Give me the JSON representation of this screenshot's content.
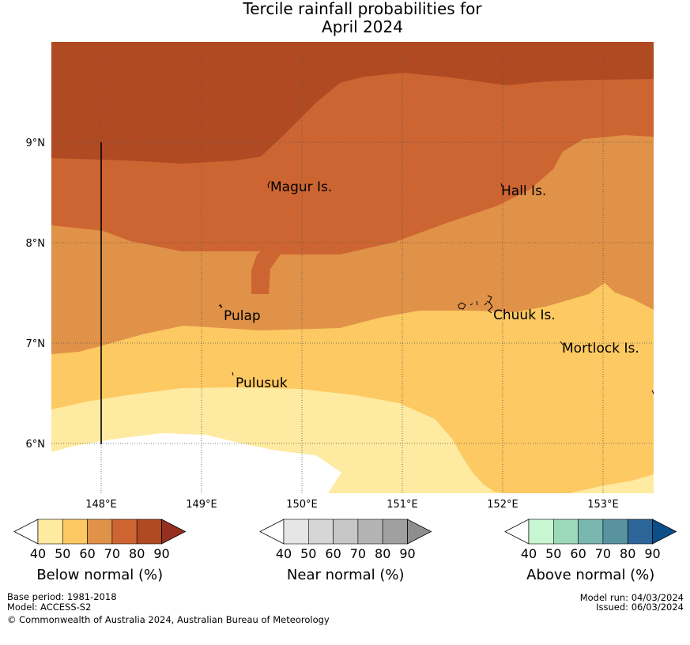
{
  "title": {
    "line1": "Tercile rainfall probabilities for",
    "line2": "April 2024"
  },
  "map": {
    "lat_labels": [
      "9°N",
      "8°N",
      "7°N",
      "6°N"
    ],
    "lon_labels": [
      "148°E",
      "149°E",
      "150°E",
      "151°E",
      "152°E",
      "153°E"
    ],
    "places": [
      "Magur Is.",
      "Hall Is.",
      "Pulap",
      "Chuuk Is.",
      "Mortlock Is.",
      "Pulusuk"
    ],
    "zone_colors": {
      "below_80": "#b04a22",
      "below_70": "#cd6532",
      "below_60": "#e09248",
      "below_50": "#fdc962",
      "below_40": "#feeaa0",
      "neutral": "#ffffff"
    }
  },
  "legends": [
    {
      "label": "Below normal (%)",
      "ticks": [
        "40",
        "50",
        "60",
        "70",
        "80",
        "90"
      ],
      "colors": [
        "#feeaa0",
        "#fdc962",
        "#e09248",
        "#cd6532",
        "#b04a22",
        "#953020"
      ]
    },
    {
      "label": "Near normal (%)",
      "ticks": [
        "40",
        "50",
        "60",
        "70",
        "80",
        "90"
      ],
      "colors": [
        "#e6e6e6",
        "#d6d6d6",
        "#c6c6c6",
        "#b3b3b3",
        "#a0a0a0",
        "#8e8e8e"
      ]
    },
    {
      "label": "Above normal (%)",
      "ticks": [
        "40",
        "50",
        "60",
        "70",
        "80",
        "90"
      ],
      "colors": [
        "#c8f5d2",
        "#9ed8bb",
        "#7ab7b0",
        "#5a93a0",
        "#2c6598",
        "#0c4e88"
      ]
    }
  ],
  "footer": {
    "base_period": "Base period: 1981-2018",
    "model": "Model: ACCESS-S2",
    "copyright": "© Commonwealth of Australia 2024, Australian Bureau of Meteorology",
    "model_run": "Model run: 04/03/2024",
    "issued": "Issued: 06/03/2024"
  }
}
